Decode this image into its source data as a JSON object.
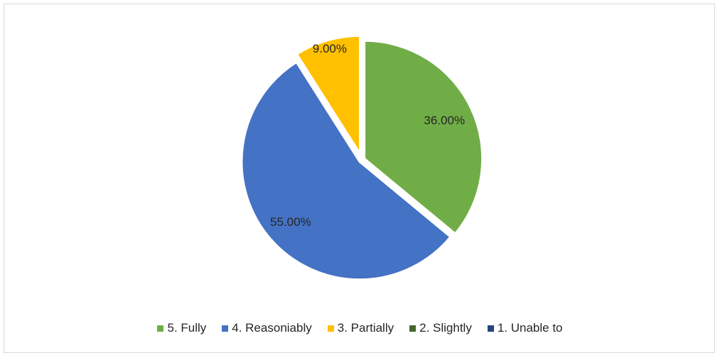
{
  "chart_data": {
    "type": "pie",
    "title": "",
    "legend_position": "bottom",
    "slices": [
      {
        "label": "5. Fully",
        "value": 36.0,
        "display": "36.00%",
        "color": "#70ad47"
      },
      {
        "label": "4. Reasoniably",
        "value": 55.0,
        "display": "55.00%",
        "color": "#4472c4"
      },
      {
        "label": "3. Partially",
        "value": 9.0,
        "display": "9.00%",
        "color": "#ffc000"
      },
      {
        "label": "2. Slightly",
        "value": 0.0,
        "display": "",
        "color": "#43682b"
      },
      {
        "label": "1. Unable to",
        "value": 0.0,
        "display": "",
        "color": "#264478"
      }
    ]
  }
}
